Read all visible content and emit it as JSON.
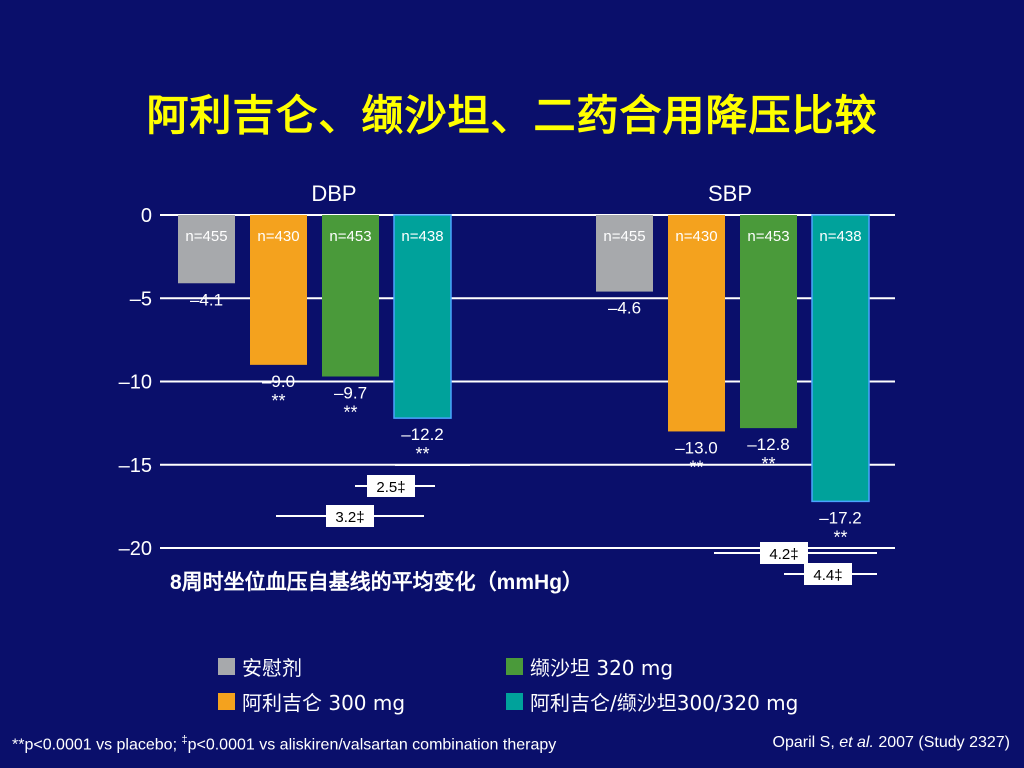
{
  "title": "阿利吉仑、缬沙坦、二药合用降压比较",
  "colors": {
    "background": "#0a0f6b",
    "title": "#ffff00",
    "placebo": "#a7a9ac",
    "aliskiren": "#f4a21e",
    "valsartan": "#4a9a3a",
    "combination": "#00a29b",
    "combination_border": "#4aa3ff"
  },
  "chart_data": {
    "type": "bar",
    "group_labels": [
      "DBP",
      "SBP"
    ],
    "ylabel": "8周时坐位血压自基线的平均变化（mmHg）",
    "ylim": [
      -20,
      0
    ],
    "yticks": [
      0,
      -5,
      -10,
      -15,
      -20
    ],
    "ytick_labels": [
      "0",
      "–5",
      "–10",
      "–15",
      "–20"
    ],
    "grid": true,
    "series": [
      {
        "name": "安慰剂",
        "key": "placebo",
        "values": [
          -4.1,
          -4.6
        ],
        "labels": [
          "–4.1",
          "–4.6"
        ],
        "n": [
          "n=455",
          "n=455"
        ],
        "sig": [
          "",
          ""
        ]
      },
      {
        "name": "阿利吉仑 300 mg",
        "key": "aliskiren",
        "values": [
          -9.0,
          -13.0
        ],
        "labels": [
          "–9.0",
          "–13.0"
        ],
        "n": [
          "n=430",
          "n=430"
        ],
        "sig": [
          "**",
          "**"
        ]
      },
      {
        "name": "缬沙坦 320 mg",
        "key": "valsartan",
        "values": [
          -9.7,
          -12.8
        ],
        "labels": [
          "–9.7",
          "–12.8"
        ],
        "n": [
          "n=453",
          "n=453"
        ],
        "sig": [
          "**",
          "**"
        ]
      },
      {
        "name": "阿利吉仑/缬沙坦300/320 mg",
        "key": "combination",
        "values": [
          -12.2,
          -17.2
        ],
        "labels": [
          "–12.2",
          "–17.2"
        ],
        "n": [
          "n=438",
          "n=438"
        ],
        "sig": [
          "**",
          "**"
        ]
      }
    ],
    "comparisons": [
      {
        "group": "DBP",
        "label": "2.5‡"
      },
      {
        "group": "DBP",
        "label": "3.2‡"
      },
      {
        "group": "SBP",
        "label": "4.2‡"
      },
      {
        "group": "SBP",
        "label": "4.4‡"
      }
    ]
  },
  "legend": {
    "items": [
      {
        "key": "placebo",
        "label": "安慰剂"
      },
      {
        "key": "valsartan",
        "label": "缬沙坦 320 mg"
      },
      {
        "key": "aliskiren",
        "label": "阿利吉仑 300 mg"
      },
      {
        "key": "combination",
        "label": "阿利吉仑/缬沙坦300/320 mg"
      }
    ]
  },
  "footnote": {
    "part1": "**p<0.0001 vs placebo; ",
    "dagger": "‡",
    "part2": "p<0.0001 vs aliskiren/valsartan combination therapy"
  },
  "citation": {
    "author": "Oparil S, ",
    "etal": "et al.",
    "rest": " 2007 (Study 2327)"
  }
}
